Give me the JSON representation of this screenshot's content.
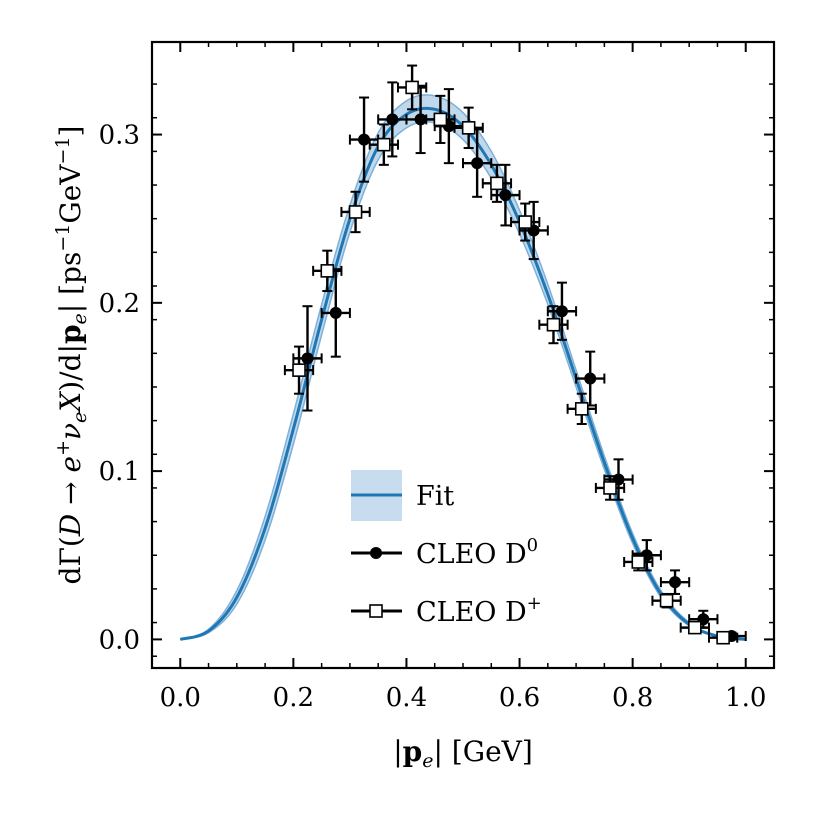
{
  "chart_data": {
    "type": "scatter",
    "title": "",
    "xlabel": "|p_e| [GeV]",
    "ylabel": "dΓ(D → e⁺ν_e X)/d|p_e| [ps⁻¹GeV⁻¹]",
    "xlim": [
      -0.05,
      1.05
    ],
    "ylim": [
      -0.017,
      0.355
    ],
    "x_ticks": [
      "0.0",
      "0.2",
      "0.4",
      "0.6",
      "0.8",
      "1.0"
    ],
    "y_ticks": [
      "0.0",
      "0.1",
      "0.2",
      "0.3"
    ],
    "x_tick_values": [
      0.0,
      0.2,
      0.4,
      0.6,
      0.8,
      1.0
    ],
    "y_tick_values": [
      0.0,
      0.1,
      0.2,
      0.3
    ],
    "legend_position": "center",
    "series": [
      {
        "name": "Fit",
        "kind": "line_with_band",
        "color": "#1f77b4",
        "band_color": "#a9cbe6",
        "x": [
          0.0,
          0.05,
          0.1,
          0.15,
          0.2,
          0.25,
          0.3,
          0.35,
          0.4,
          0.45,
          0.5,
          0.55,
          0.6,
          0.65,
          0.7,
          0.75,
          0.8,
          0.85,
          0.9,
          0.95,
          1.0
        ],
        "values": [
          0.0,
          0.005,
          0.025,
          0.066,
          0.125,
          0.19,
          0.25,
          0.293,
          0.312,
          0.315,
          0.305,
          0.282,
          0.248,
          0.205,
          0.155,
          0.105,
          0.06,
          0.027,
          0.009,
          0.002,
          0.0
        ],
        "band_halfwidth": [
          0.0,
          0.001,
          0.004,
          0.007,
          0.009,
          0.009,
          0.008,
          0.008,
          0.008,
          0.008,
          0.008,
          0.008,
          0.007,
          0.006,
          0.005,
          0.004,
          0.003,
          0.002,
          0.001,
          0.0,
          0.0
        ]
      },
      {
        "name": "CLEO D⁰",
        "kind": "points",
        "marker": "filled-circle",
        "color": "#000000",
        "x": [
          0.225,
          0.275,
          0.325,
          0.375,
          0.425,
          0.475,
          0.525,
          0.575,
          0.625,
          0.675,
          0.725,
          0.775,
          0.825,
          0.875,
          0.925,
          0.975
        ],
        "values": [
          0.167,
          0.194,
          0.297,
          0.309,
          0.309,
          0.305,
          0.283,
          0.264,
          0.243,
          0.195,
          0.155,
          0.095,
          0.05,
          0.034,
          0.012,
          0.002
        ],
        "x_err": [
          0.025,
          0.025,
          0.025,
          0.025,
          0.025,
          0.025,
          0.025,
          0.025,
          0.025,
          0.025,
          0.025,
          0.025,
          0.025,
          0.025,
          0.025,
          0.025
        ],
        "y_err": [
          0.031,
          0.026,
          0.025,
          0.022,
          0.02,
          0.022,
          0.02,
          0.018,
          0.017,
          0.017,
          0.016,
          0.012,
          0.009,
          0.007,
          0.005,
          0.002
        ]
      },
      {
        "name": "CLEO D⁺",
        "kind": "points",
        "marker": "open-square",
        "color": "#000000",
        "x": [
          0.21,
          0.26,
          0.31,
          0.36,
          0.41,
          0.46,
          0.51,
          0.56,
          0.61,
          0.66,
          0.71,
          0.76,
          0.81,
          0.86,
          0.91,
          0.96
        ],
        "values": [
          0.16,
          0.219,
          0.254,
          0.294,
          0.328,
          0.309,
          0.304,
          0.271,
          0.248,
          0.187,
          0.137,
          0.09,
          0.046,
          0.023,
          0.007,
          0.001
        ],
        "x_err": [
          0.025,
          0.025,
          0.025,
          0.025,
          0.025,
          0.025,
          0.025,
          0.025,
          0.025,
          0.025,
          0.025,
          0.025,
          0.025,
          0.025,
          0.025,
          0.025
        ],
        "y_err": [
          0.014,
          0.012,
          0.012,
          0.012,
          0.013,
          0.014,
          0.012,
          0.011,
          0.011,
          0.011,
          0.009,
          0.007,
          0.005,
          0.004,
          0.003,
          0.002
        ]
      }
    ],
    "legend": {
      "fit": "Fit",
      "d0": "CLEO D",
      "d0_sup": "0",
      "dplus": "CLEO D",
      "dplus_sup": "+"
    }
  }
}
